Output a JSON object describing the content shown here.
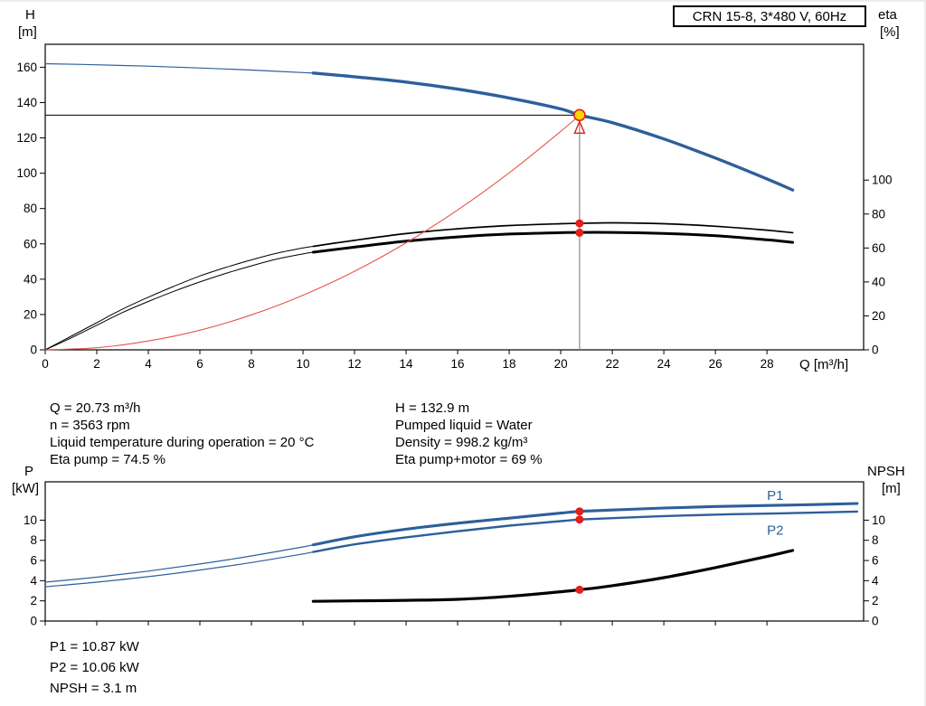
{
  "colors": {
    "curve_blue": "#2d5f9a",
    "curve_black": "#000000",
    "system_red": "#e8554a",
    "dot_red": "#e3201b",
    "duty_yellow": "#ffd500",
    "guide_gray": "#8c8c8c"
  },
  "title_box": {
    "label": "CRN 15-8, 3*480 V, 60Hz"
  },
  "results_top": {
    "left": [
      "Q = 20.73 m³/h",
      "n = 3563 rpm",
      "Liquid temperature during operation = 20 °C",
      "Eta pump = 74.5 %"
    ],
    "right": [
      "H = 132.9 m",
      "Pumped liquid = Water",
      "Density = 998.2 kg/m³",
      "Eta pump+motor = 69 %"
    ]
  },
  "results_bottom": [
    "P1 = 10.87 kW",
    "P2 = 10.06 kW",
    "NPSH = 3.1 m"
  ],
  "chart_data": [
    {
      "type": "line",
      "title": "CRN 15-8, 3*480 V, 60Hz",
      "x_label": "Q [m³/h]",
      "y_left_label": [
        "H",
        "[m]"
      ],
      "y_right_label": [
        "eta",
        "[%]"
      ],
      "x_range": [
        0,
        31.75
      ],
      "x_ticks": [
        0,
        2,
        4,
        6,
        8,
        10,
        12,
        14,
        16,
        18,
        20,
        22,
        24,
        26,
        28
      ],
      "x_tick_labels": true,
      "y_left_range": [
        0,
        173
      ],
      "y_left_ticks": [
        0,
        20,
        40,
        60,
        80,
        100,
        120,
        140,
        160
      ],
      "y_right_range": [
        0,
        180
      ],
      "y_right_ticks": [
        0,
        20,
        40,
        60,
        80,
        100
      ],
      "grid": false,
      "series": [
        {
          "id": "head",
          "name": "H pump curve",
          "axis": "left",
          "color_key": "curve_blue",
          "w_thin": 1.2,
          "w_thick": 3.4,
          "thick_from": 10.4,
          "points": [
            [
              0,
              162
            ],
            [
              2,
              161.4
            ],
            [
              4,
              160.6
            ],
            [
              6,
              159.6
            ],
            [
              8,
              158.4
            ],
            [
              10,
              157
            ],
            [
              10.4,
              156.7
            ],
            [
              12,
              154.6
            ],
            [
              14,
              151.6
            ],
            [
              16,
              147.6
            ],
            [
              18,
              142.6
            ],
            [
              20,
              136.4
            ],
            [
              20.73,
              132.9
            ],
            [
              22,
              128.6
            ],
            [
              24,
              119.4
            ],
            [
              26,
              108.6
            ],
            [
              28,
              96.8
            ],
            [
              29,
              90.5
            ]
          ]
        },
        {
          "id": "eta-pump",
          "name": "Eta pump",
          "axis": "right",
          "color_key": "curve_black",
          "w_thin": 1,
          "w_thick": 1.7,
          "thick_from": 10.4,
          "points": [
            [
              0,
              0
            ],
            [
              1,
              8
            ],
            [
              2,
              16
            ],
            [
              3,
              24
            ],
            [
              4,
              31
            ],
            [
              5,
              37.5
            ],
            [
              6,
              43.5
            ],
            [
              7,
              48.5
            ],
            [
              8,
              53
            ],
            [
              9,
              57
            ],
            [
              10,
              60
            ],
            [
              10.4,
              61
            ],
            [
              12,
              64.5
            ],
            [
              14,
              68.5
            ],
            [
              16,
              71.3
            ],
            [
              18,
              73.2
            ],
            [
              20,
              74.3
            ],
            [
              20.73,
              74.5
            ],
            [
              22,
              74.8
            ],
            [
              24,
              74.3
            ],
            [
              26,
              72.8
            ],
            [
              28,
              70.5
            ],
            [
              29,
              69
            ]
          ]
        },
        {
          "id": "eta-pump-motor",
          "name": "Eta pump+motor",
          "axis": "right",
          "color_key": "curve_black",
          "w_thin": 1,
          "w_thick": 3,
          "thick_from": 10.4,
          "points": [
            [
              0,
              0
            ],
            [
              1,
              7
            ],
            [
              2,
              14.5
            ],
            [
              3,
              22
            ],
            [
              4,
              28.5
            ],
            [
              5,
              34.5
            ],
            [
              6,
              40
            ],
            [
              7,
              45
            ],
            [
              8,
              49.5
            ],
            [
              9,
              53.5
            ],
            [
              10,
              56.5
            ],
            [
              10.4,
              57.5
            ],
            [
              12,
              60.5
            ],
            [
              14,
              64
            ],
            [
              16,
              66.5
            ],
            [
              18,
              68.2
            ],
            [
              20,
              69
            ],
            [
              20.73,
              69.2
            ],
            [
              22,
              69.2
            ],
            [
              24,
              68.6
            ],
            [
              26,
              67.2
            ],
            [
              28,
              64.8
            ],
            [
              29,
              63.3
            ]
          ]
        },
        {
          "id": "system-curve",
          "name": "System curve",
          "axis": "left",
          "color_key": "system_red",
          "w_thin": 1.1,
          "points": [
            [
              0,
              0
            ],
            [
              2,
              1.2
            ],
            [
              4,
              5
            ],
            [
              6,
              11.1
            ],
            [
              8,
              19.8
            ],
            [
              10,
              30.9
            ],
            [
              12,
              44.5
            ],
            [
              14,
              60.6
            ],
            [
              16,
              79.2
            ],
            [
              18,
              100.2
            ],
            [
              20,
              123.7
            ],
            [
              20.73,
              132.9
            ]
          ]
        }
      ],
      "duty_point": {
        "q": 20.73,
        "h": 132.9
      },
      "duty_eta_values": [
        74.5,
        69
      ]
    },
    {
      "type": "line",
      "x_label": "",
      "y_left_label": [
        "P",
        "[kW]"
      ],
      "y_right_label": [
        "NPSH",
        "[m]"
      ],
      "x_range": [
        0,
        31.75
      ],
      "x_ticks": [
        0,
        2,
        4,
        6,
        8,
        10,
        12,
        14,
        16,
        18,
        20,
        22,
        24,
        26,
        28
      ],
      "x_tick_labels": false,
      "y_left_range": [
        0,
        13.8
      ],
      "y_left_ticks": [
        0,
        2,
        4,
        6,
        8,
        10
      ],
      "y_right_range": [
        0,
        13.8
      ],
      "y_right_ticks": [
        0,
        2,
        4,
        6,
        8,
        10
      ],
      "grid": false,
      "series": [
        {
          "id": "p1",
          "name": "P1",
          "axis": "left",
          "color_key": "curve_blue",
          "w_thin": 1.2,
          "w_thick": 3.1,
          "thick_from": 10.4,
          "label": "P1",
          "label_at": [
            28.0,
            12.0
          ],
          "points": [
            [
              0,
              3.85
            ],
            [
              2,
              4.35
            ],
            [
              4,
              4.95
            ],
            [
              6,
              5.65
            ],
            [
              8,
              6.45
            ],
            [
              10,
              7.35
            ],
            [
              10.4,
              7.55
            ],
            [
              12,
              8.35
            ],
            [
              14,
              9.1
            ],
            [
              16,
              9.7
            ],
            [
              18,
              10.2
            ],
            [
              20,
              10.7
            ],
            [
              20.73,
              10.87
            ],
            [
              22,
              11.0
            ],
            [
              24,
              11.2
            ],
            [
              26,
              11.35
            ],
            [
              28,
              11.45
            ],
            [
              29,
              11.5
            ],
            [
              31.5,
              11.65
            ]
          ]
        },
        {
          "id": "p2",
          "name": "P2",
          "axis": "left",
          "color_key": "curve_blue",
          "w_thin": 1.2,
          "w_thick": 2.4,
          "thick_from": 10.4,
          "label": "P2",
          "label_at": [
            28.0,
            8.55
          ],
          "points": [
            [
              0,
              3.4
            ],
            [
              2,
              3.85
            ],
            [
              4,
              4.4
            ],
            [
              6,
              5.05
            ],
            [
              8,
              5.8
            ],
            [
              10,
              6.65
            ],
            [
              10.4,
              6.85
            ],
            [
              12,
              7.6
            ],
            [
              14,
              8.3
            ],
            [
              16,
              8.9
            ],
            [
              18,
              9.45
            ],
            [
              20,
              9.9
            ],
            [
              20.73,
              10.06
            ],
            [
              22,
              10.2
            ],
            [
              24,
              10.4
            ],
            [
              26,
              10.55
            ],
            [
              28,
              10.65
            ],
            [
              29,
              10.7
            ],
            [
              31.5,
              10.85
            ]
          ]
        },
        {
          "id": "npsh",
          "name": "NPSH",
          "axis": "right",
          "color_key": "curve_black",
          "w_thin": 3.2,
          "w_thick": 3.2,
          "thick_from": 10.4,
          "points": [
            [
              10.4,
              1.95
            ],
            [
              12,
              2.0
            ],
            [
              14,
              2.05
            ],
            [
              16,
              2.15
            ],
            [
              18,
              2.45
            ],
            [
              20,
              2.9
            ],
            [
              20.73,
              3.1
            ],
            [
              22,
              3.5
            ],
            [
              24,
              4.3
            ],
            [
              26,
              5.3
            ],
            [
              28,
              6.4
            ],
            [
              29,
              7.0
            ]
          ]
        }
      ],
      "duty_markers": [
        {
          "series": "p1",
          "axis": "left",
          "q": 20.73,
          "value": 10.87
        },
        {
          "series": "p2",
          "axis": "left",
          "q": 20.73,
          "value": 10.06
        },
        {
          "series": "npsh",
          "axis": "right",
          "q": 20.73,
          "value": 3.1
        }
      ]
    }
  ]
}
